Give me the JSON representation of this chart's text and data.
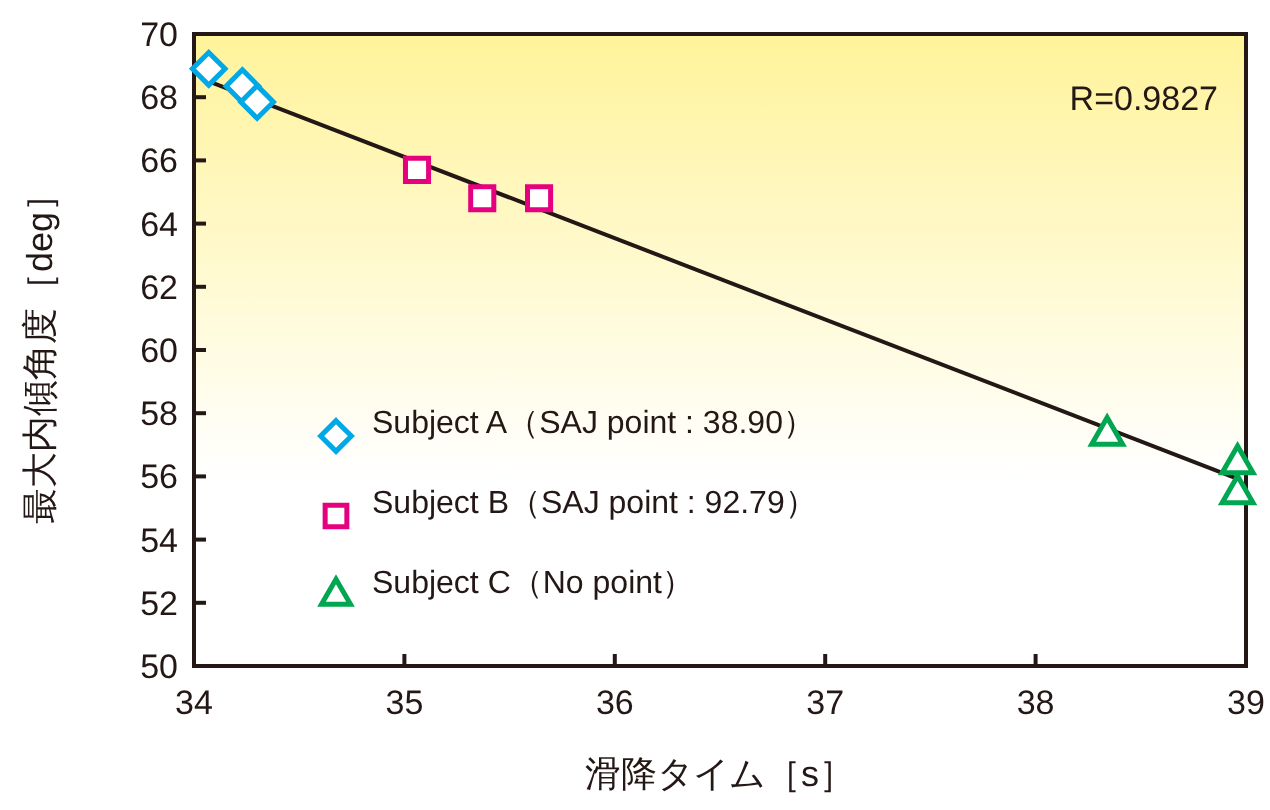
{
  "chart_data": {
    "type": "scatter",
    "xlabel": "滑降タイム［s］",
    "ylabel": "最大内傾角度［deg］",
    "xlim": [
      34,
      39
    ],
    "xticks": [
      34,
      35,
      36,
      37,
      38,
      39
    ],
    "ylim": [
      50,
      70
    ],
    "yticks": [
      50,
      52,
      54,
      56,
      58,
      60,
      62,
      64,
      66,
      68,
      70
    ],
    "grid": false,
    "legend": "left",
    "annotations": [
      "R=0.9827"
    ],
    "series": [
      {
        "name": "Subject A（SAJ point : 38.90）",
        "color": "#00a8e8",
        "marker": "diamond",
        "x": [
          34.07,
          34.23,
          34.3
        ],
        "values": [
          68.9,
          68.35,
          67.85
        ]
      },
      {
        "name": "Subject B（SAJ point : 92.79）",
        "color": "#e4007f",
        "marker": "square",
        "x": [
          35.06,
          35.37,
          35.64
        ],
        "values": [
          65.7,
          64.8,
          64.8
        ]
      },
      {
        "name": "Subject C（No point）",
        "color": "#00a650",
        "marker": "triangle",
        "x": [
          38.34,
          38.96,
          38.96
        ],
        "values": [
          57.3,
          56.4,
          55.45
        ]
      },
      {
        "type": "line",
        "color": "#231815",
        "x": [
          34.07,
          38.97
        ],
        "values": [
          68.5,
          55.9
        ]
      }
    ]
  }
}
